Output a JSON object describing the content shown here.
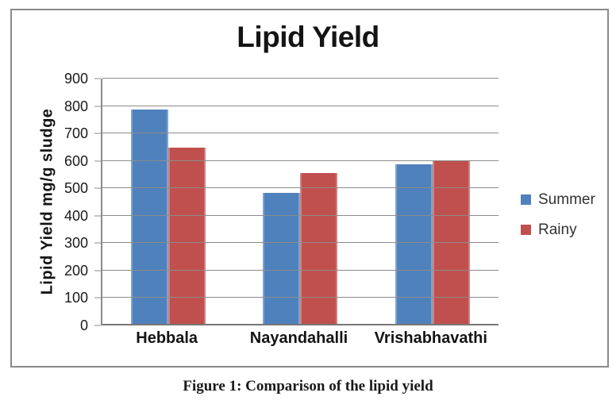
{
  "page": {
    "background": "#FFFFFF"
  },
  "figure": {
    "caption": "Figure 1: Comparison of the lipid yield",
    "border_color": "#8A8A8A"
  },
  "chart_data": {
    "type": "bar",
    "title": "Lipid Yield",
    "categories": [
      "Hebbala",
      "Nayandahalli",
      "Vrishabhavathi"
    ],
    "series": [
      {
        "name": "Summer",
        "color": "#4F81BD",
        "values": [
          787,
          484,
          587
        ]
      },
      {
        "name": "Rainy",
        "color": "#C0504D",
        "values": [
          648,
          555,
          601
        ]
      }
    ],
    "xlabel": "",
    "ylabel": "Lipid Yield mg/g sludge",
    "ylim": [
      0,
      900
    ],
    "y_tick_step": 100,
    "y_tick_labels": [
      "0",
      "100",
      "200",
      "300",
      "400",
      "500",
      "600",
      "700",
      "800",
      "900"
    ],
    "grid": true,
    "grid_color": "#8C8C8C",
    "legend_position": "right",
    "legend_text_color": "#333333",
    "text_color": "#1A1A1A"
  }
}
